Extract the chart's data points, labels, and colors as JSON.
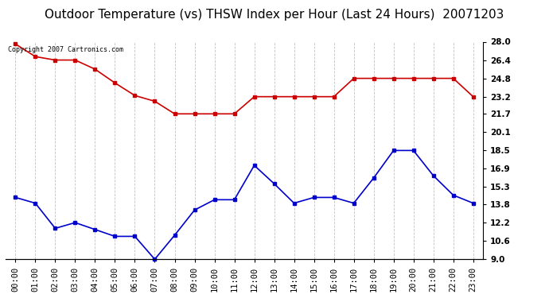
{
  "title": "Outdoor Temperature (vs) THSW Index per Hour (Last 24 Hours)  20071203",
  "copyright_text": "Copyright 2007 Cartronics.com",
  "hours": [
    "00:00",
    "01:00",
    "02:00",
    "03:00",
    "04:00",
    "05:00",
    "06:00",
    "07:00",
    "08:00",
    "09:00",
    "10:00",
    "11:00",
    "12:00",
    "13:00",
    "14:00",
    "15:00",
    "16:00",
    "17:00",
    "18:00",
    "19:00",
    "20:00",
    "21:00",
    "22:00",
    "23:00"
  ],
  "red_data": [
    27.8,
    26.7,
    26.4,
    26.4,
    25.6,
    24.4,
    23.3,
    22.8,
    21.7,
    21.7,
    21.7,
    21.7,
    23.2,
    23.2,
    23.2,
    23.2,
    23.2,
    24.8,
    24.8,
    24.8,
    24.8,
    24.8,
    24.8,
    23.2
  ],
  "blue_data": [
    14.4,
    13.9,
    11.7,
    12.2,
    11.6,
    11.0,
    11.0,
    9.0,
    11.1,
    13.3,
    14.2,
    14.2,
    17.2,
    15.6,
    13.9,
    14.4,
    14.4,
    13.9,
    16.1,
    18.5,
    18.5,
    16.3,
    14.6,
    13.9
  ],
  "red_color": "#cc0000",
  "blue_color": "#0000cc",
  "ymin": 9.0,
  "ymax": 28.0,
  "yticks_right": [
    9.0,
    10.6,
    12.2,
    13.8,
    15.3,
    16.9,
    18.5,
    20.1,
    21.7,
    23.2,
    24.8,
    26.4,
    28.0
  ],
  "background_color": "#ffffff",
  "grid_color": "#bbbbbb",
  "title_fontsize": 11,
  "tick_fontsize": 7.5,
  "copyright_fontsize": 6,
  "marker": "s",
  "marker_size": 3,
  "line_width": 1.2
}
